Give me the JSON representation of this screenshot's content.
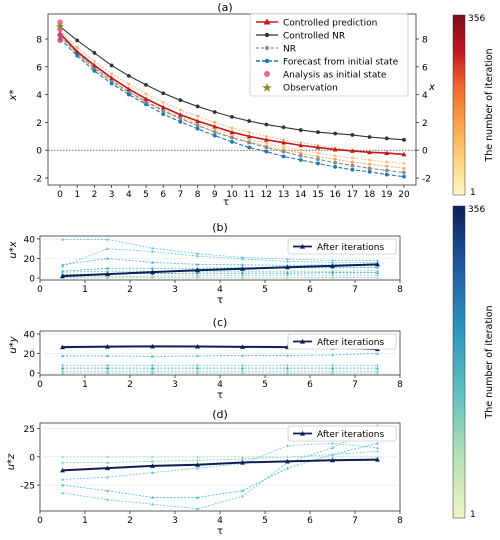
{
  "colorbars": [
    {
      "label": "The number of iteration",
      "max_label": "356",
      "min_label": "1",
      "colors": [
        "#fff7c0",
        "#fdd27c",
        "#fca04a",
        "#f06a2d",
        "#c0171e",
        "#7f0a1c"
      ]
    },
    {
      "label": "The number of iteration",
      "max_label": "356",
      "min_label": "1",
      "colors": [
        "#eef6c4",
        "#b3e0b6",
        "#60c1c1",
        "#2d96c0",
        "#1f5ca3",
        "#0c1f59"
      ]
    }
  ],
  "chart_data": [
    {
      "type": "line",
      "title": "(a)",
      "xlabel": "τ",
      "ylabel": "x*",
      "ylabel_right": "x",
      "x": [
        0,
        1,
        2,
        3,
        4,
        5,
        6,
        7,
        8,
        9,
        10,
        11,
        12,
        13,
        14,
        15,
        16,
        17,
        18,
        19,
        20
      ],
      "xlim": [
        -0.7,
        20.7
      ],
      "ylim": [
        -2.5,
        9.8
      ],
      "yticks": [
        -2,
        0,
        2,
        4,
        6,
        8
      ],
      "zero_line": true,
      "legend": [
        "Controlled prediction",
        "Controlled NR",
        "NR",
        "Forecast from initial state",
        "Analysis as initial state",
        "Observation"
      ],
      "series": [
        {
          "name": "Controlled NR",
          "color": "#333333",
          "marker": "circle",
          "values": [
            8.9,
            7.9,
            7.0,
            6.1,
            5.35,
            4.7,
            4.1,
            3.6,
            3.15,
            2.75,
            2.4,
            2.1,
            1.85,
            1.65,
            1.45,
            1.3,
            1.2,
            1.1,
            0.95,
            0.85,
            0.75
          ]
        },
        {
          "name": "NR",
          "color": "#8a8a8a",
          "marker": "circle",
          "dashed": true,
          "values": [
            8.2,
            7.0,
            5.9,
            5.0,
            4.2,
            3.5,
            2.85,
            2.3,
            1.8,
            1.3,
            0.9,
            0.55,
            0.2,
            -0.1,
            -0.4,
            -0.65,
            -0.9,
            -1.1,
            -1.3,
            -1.45,
            -1.6
          ]
        },
        {
          "name": "Forecast from initial state",
          "color": "#1f77b4",
          "marker": "circle",
          "dashed": true,
          "values": [
            8.0,
            6.8,
            5.7,
            4.8,
            4.0,
            3.3,
            2.6,
            2.05,
            1.55,
            1.05,
            0.6,
            0.2,
            -0.1,
            -0.45,
            -0.7,
            -0.95,
            -1.2,
            -1.4,
            -1.55,
            -1.75,
            -1.9
          ]
        },
        {
          "name": "Controlled prediction",
          "color": "#c21a1f",
          "marker": "triangle",
          "values": [
            8.4,
            7.1,
            6.1,
            5.2,
            4.4,
            3.7,
            3.1,
            2.55,
            2.1,
            1.7,
            1.3,
            1.0,
            0.75,
            0.55,
            0.35,
            0.2,
            0.05,
            -0.05,
            -0.15,
            -0.2,
            -0.3
          ]
        }
      ],
      "spread_series": [
        {
          "values": [
            8.6,
            7.4,
            6.4,
            5.5,
            4.75,
            4.05,
            3.45,
            2.9,
            2.45,
            2.0,
            1.6,
            1.3,
            1.0,
            0.75,
            0.55,
            0.35,
            0.15,
            0.0,
            -0.1,
            -0.2,
            -0.25
          ]
        },
        {
          "values": [
            8.2,
            6.9,
            5.85,
            4.9,
            4.1,
            3.4,
            2.8,
            2.25,
            1.75,
            1.35,
            0.95,
            0.6,
            0.3,
            0.05,
            -0.2,
            -0.45,
            -0.65,
            -0.85,
            -1.0,
            -1.15,
            -1.3
          ]
        },
        {
          "values": [
            8.3,
            7.0,
            5.95,
            5.05,
            4.25,
            3.55,
            2.95,
            2.4,
            1.95,
            1.5,
            1.1,
            0.8,
            0.5,
            0.25,
            0.0,
            -0.2,
            -0.4,
            -0.55,
            -0.7,
            -0.85,
            -0.95
          ]
        }
      ],
      "analysis_points": [
        {
          "x": 0,
          "y": 9.2
        },
        {
          "x": 0,
          "y": 8.7
        },
        {
          "x": 0,
          "y": 8.3
        },
        {
          "x": 0,
          "y": 7.9
        }
      ],
      "observation_points": [
        {
          "x": 0,
          "y": 8.9
        }
      ]
    },
    {
      "type": "line",
      "title": "(b)",
      "xlabel": "τ",
      "ylabel": "u*x",
      "x": [
        0.5,
        1.5,
        2.5,
        3.5,
        4.5,
        5.5,
        6.5,
        7.5
      ],
      "xlim": [
        0,
        8
      ],
      "ylim": [
        -2,
        43
      ],
      "xticks": [
        0,
        1,
        2,
        3,
        4,
        5,
        6,
        7,
        8
      ],
      "yticks": [
        0,
        20,
        40
      ],
      "legend": [
        "After iterations"
      ],
      "final_series": {
        "name": "After iterations",
        "values": [
          2.0,
          4.0,
          6.0,
          8.0,
          9.5,
          11.0,
          12.5,
          14.0
        ]
      },
      "iteration_series": [
        {
          "values": [
            39.5,
            39.5,
            30.5,
            25.0,
            21.0,
            19.5,
            18.0,
            18.0
          ],
          "color": "#5ec8e2"
        },
        {
          "values": [
            12.0,
            30.0,
            27.0,
            22.5,
            19.5,
            17.0,
            16.0,
            16.0
          ],
          "color": "#5ec8e2"
        },
        {
          "values": [
            13.5,
            20.0,
            16.0,
            14.0,
            13.5,
            13.0,
            13.5,
            14.5
          ],
          "color": "#42b8d6"
        },
        {
          "values": [
            7.0,
            10.0,
            10.0,
            10.0,
            10.5,
            10.5,
            10.5,
            11.0
          ],
          "color": "#3aa7c8"
        },
        {
          "values": [
            6.0,
            7.0,
            7.0,
            7.0,
            7.0,
            7.0,
            7.0,
            7.5
          ],
          "color": "#73cfc4"
        },
        {
          "values": [
            3.5,
            4.5,
            4.5,
            5.0,
            5.0,
            5.0,
            5.5,
            5.5
          ],
          "color": "#2d96c0"
        },
        {
          "values": [
            1.0,
            1.5,
            2.0,
            2.5,
            2.5,
            3.0,
            3.0,
            3.0
          ],
          "color": "#88d6c0"
        },
        {
          "values": [
            0.2,
            0.2,
            0.5,
            0.5,
            0.5,
            0.5,
            0.5,
            0.5
          ],
          "color": "#9edcb8"
        }
      ]
    },
    {
      "type": "line",
      "title": "(c)",
      "xlabel": "τ",
      "ylabel": "u*y",
      "x": [
        0.5,
        1.5,
        2.5,
        3.5,
        4.5,
        5.5,
        6.5,
        7.5
      ],
      "xlim": [
        0,
        8
      ],
      "ylim": [
        -2,
        43
      ],
      "xticks": [
        0,
        1,
        2,
        3,
        4,
        5,
        6,
        7,
        8
      ],
      "yticks": [
        0,
        20,
        40
      ],
      "legend": [
        "After iterations"
      ],
      "final_series": {
        "name": "After iterations",
        "values": [
          26.5,
          27.0,
          27.3,
          27.2,
          26.8,
          26.5,
          26.0,
          24.5
        ]
      },
      "iteration_series": [
        {
          "values": [
            17.5,
            17.5,
            17.0,
            17.5,
            18.0,
            18.0,
            18.5,
            20.0
          ],
          "color": "#42b8d6"
        },
        {
          "values": [
            8.0,
            8.0,
            8.0,
            8.0,
            8.0,
            8.0,
            8.0,
            8.0
          ],
          "color": "#5ec8e2"
        },
        {
          "values": [
            5.0,
            5.0,
            5.0,
            5.0,
            5.0,
            5.0,
            5.0,
            5.0
          ],
          "color": "#2d96c0"
        },
        {
          "values": [
            2.0,
            2.0,
            2.0,
            2.0,
            2.0,
            2.0,
            2.0,
            2.0
          ],
          "color": "#73cfc4"
        },
        {
          "values": [
            0.0,
            0.0,
            0.0,
            0.0,
            0.0,
            0.0,
            0.0,
            0.0
          ],
          "color": "#88d6c0"
        }
      ]
    },
    {
      "type": "line",
      "title": "(d)",
      "xlabel": "τ",
      "ylabel": "u*z",
      "x": [
        0.5,
        1.5,
        2.5,
        3.5,
        4.5,
        5.5,
        6.5,
        7.5
      ],
      "xlim": [
        0,
        8
      ],
      "ylim": [
        -48,
        30
      ],
      "xticks": [
        0,
        1,
        2,
        3,
        4,
        5,
        6,
        7,
        8
      ],
      "yticks": [
        -25,
        0,
        25
      ],
      "legend": [
        "After iterations"
      ],
      "final_series": {
        "name": "After iterations",
        "values": [
          -12.0,
          -10.0,
          -8.0,
          -7.0,
          -5.0,
          -4.0,
          -3.0,
          -2.5
        ]
      },
      "iteration_series": [
        {
          "values": [
            -32.0,
            -38.0,
            -42.0,
            -46.0,
            -35.0,
            -5.0,
            8.0,
            28.0
          ],
          "color": "#5ec8e2"
        },
        {
          "values": [
            -25.0,
            -30.0,
            -36.0,
            -36.0,
            -30.0,
            -10.0,
            2.0,
            12.0
          ],
          "color": "#42b8d6"
        },
        {
          "values": [
            -20.0,
            -18.0,
            -14.0,
            -10.0,
            -6.0,
            10.0,
            12.0,
            8.0
          ],
          "color": "#5ec8e2"
        },
        {
          "values": [
            -5.0,
            -5.0,
            -4.0,
            -3.0,
            -2.0,
            0.0,
            2.0,
            5.0
          ],
          "color": "#73cfc4"
        },
        {
          "values": [
            0.0,
            0.0,
            0.0,
            0.0,
            0.0,
            0.0,
            0.0,
            0.0
          ],
          "color": "#9edcb8"
        }
      ]
    }
  ]
}
